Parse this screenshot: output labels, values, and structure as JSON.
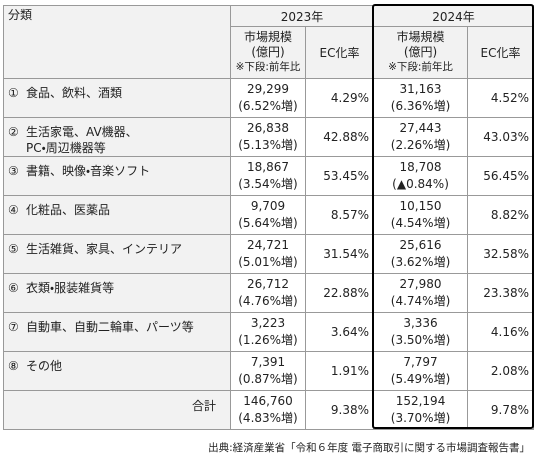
{
  "header": {
    "category": "分類",
    "years": [
      {
        "label": "2023年",
        "market": "市場規模\n(億円)",
        "note": "※下段:前年比",
        "ec": "EC化率"
      },
      {
        "label": "2024年",
        "market": "市場規模\n(億円)",
        "note": "※下段:前年比",
        "ec": "EC化率"
      }
    ]
  },
  "rows": [
    {
      "no": "①",
      "name": "食品、飲料、酒類",
      "years": [
        {
          "market": "29,299",
          "growth": "(6.52%増)",
          "ec": "4.29%"
        },
        {
          "market": "31,163",
          "growth": "(6.36%増)",
          "ec": "4.52%"
        }
      ]
    },
    {
      "no": "②",
      "name": "生活家電、AV機器、\nPC・周辺機器等",
      "years": [
        {
          "market": "26,838",
          "growth": "(5.13%増)",
          "ec": "42.88%"
        },
        {
          "market": "27,443",
          "growth": "(2.26%増)",
          "ec": "43.03%"
        }
      ]
    },
    {
      "no": "③",
      "name": "書籍、映像・音楽ソフト",
      "years": [
        {
          "market": "18,867",
          "growth": "(3.54%増)",
          "ec": "53.45%"
        },
        {
          "market": "18,708",
          "growth": "(▲0.84%)",
          "ec": "56.45%"
        }
      ]
    },
    {
      "no": "④",
      "name": "化粧品、医薬品",
      "years": [
        {
          "market": "9,709",
          "growth": "(5.64%増)",
          "ec": "8.57%"
        },
        {
          "market": "10,150",
          "growth": "(4.54%増)",
          "ec": "8.82%"
        }
      ]
    },
    {
      "no": "⑤",
      "name": "生活雑貨、家具、インテリア",
      "years": [
        {
          "market": "24,721",
          "growth": "(5.01%増)",
          "ec": "31.54%"
        },
        {
          "market": "25,616",
          "growth": "(3.62%増)",
          "ec": "32.58%"
        }
      ]
    },
    {
      "no": "⑥",
      "name": "衣類・服装雑貨等",
      "years": [
        {
          "market": "26,712",
          "growth": "(4.76%増)",
          "ec": "22.88%"
        },
        {
          "market": "27,980",
          "growth": "(4.74%増)",
          "ec": "23.38%"
        }
      ]
    },
    {
      "no": "⑦",
      "name": "自動車、自動二輪車、パーツ等",
      "years": [
        {
          "market": "3,223",
          "growth": "(1.26%増)",
          "ec": "3.64%"
        },
        {
          "market": "3,336",
          "growth": "(3.50%増)",
          "ec": "4.16%"
        }
      ]
    },
    {
      "no": "⑧",
      "name": "その他",
      "years": [
        {
          "market": "7,391",
          "growth": "(0.87%増)",
          "ec": "1.91%"
        },
        {
          "market": "7,797",
          "growth": "(5.49%増)",
          "ec": "2.08%"
        }
      ]
    }
  ],
  "total": {
    "name": "合計",
    "years": [
      {
        "market": "146,760",
        "growth": "(4.83%増)",
        "ec": "9.38%"
      },
      {
        "market": "152,194",
        "growth": "(3.70%増)",
        "ec": "9.78%"
      }
    ]
  },
  "source": "出典:経済産業省「令和６年度 電子商取引に関する市場調査報告書」"
}
